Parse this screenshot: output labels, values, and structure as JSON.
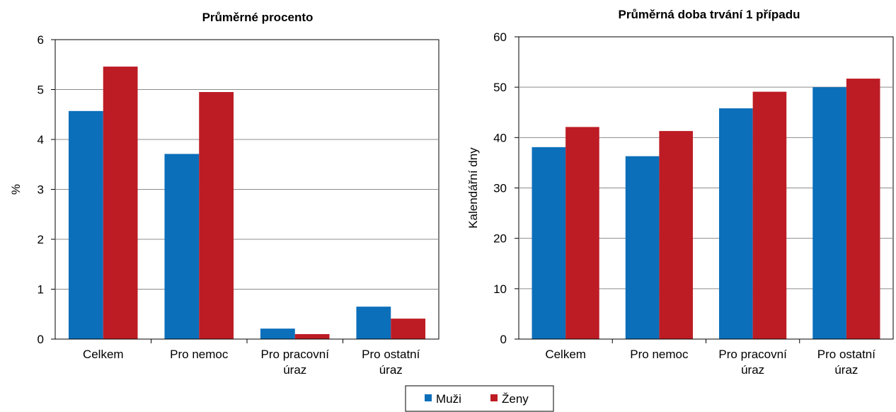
{
  "legend": {
    "items": [
      {
        "label": "Muži",
        "color": "#0b6fba"
      },
      {
        "label": "Ženy",
        "color": "#bd1c24"
      }
    ]
  },
  "chart_data": [
    {
      "type": "bar",
      "title": "Průměrné  procento",
      "ylabel": "%",
      "xlabel": "",
      "ylim": [
        0,
        6
      ],
      "yticks": [
        0,
        1,
        2,
        3,
        4,
        5,
        6
      ],
      "categories": [
        [
          "Celkem"
        ],
        [
          "Pro nemoc"
        ],
        [
          "Pro pracovní",
          "úraz"
        ],
        [
          "Pro ostatní",
          "úraz"
        ]
      ],
      "series": [
        {
          "name": "Muži",
          "color": "#0b6fba",
          "values": [
            4.57,
            3.71,
            0.21,
            0.65
          ]
        },
        {
          "name": "Ženy",
          "color": "#bd1c24",
          "values": [
            5.46,
            4.95,
            0.1,
            0.41
          ]
        }
      ],
      "grid": true
    },
    {
      "type": "bar",
      "title": "Průměrná doba trvání 1 případu",
      "ylabel": "Kalendářní dny",
      "xlabel": "",
      "ylim": [
        0,
        60
      ],
      "yticks": [
        0,
        10,
        20,
        30,
        40,
        50,
        60
      ],
      "categories": [
        [
          "Celkem"
        ],
        [
          "Pro nemoc"
        ],
        [
          "Pro pracovní",
          "úraz"
        ],
        [
          "Pro ostatní",
          "úraz"
        ]
      ],
      "series": [
        {
          "name": "Muži",
          "color": "#0b6fba",
          "values": [
            38.1,
            36.3,
            45.8,
            50.0
          ]
        },
        {
          "name": "Ženy",
          "color": "#bd1c24",
          "values": [
            42.1,
            41.3,
            49.1,
            51.7
          ]
        }
      ],
      "grid": true
    }
  ]
}
